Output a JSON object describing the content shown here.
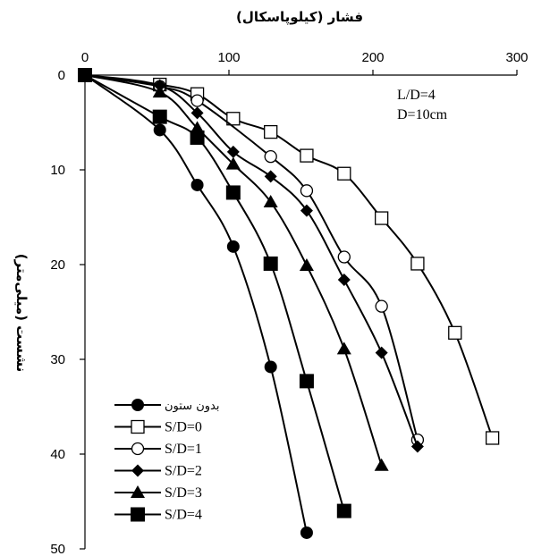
{
  "chart_data": {
    "type": "line",
    "title": "",
    "xlabel": "فشار (کیلوپاسکال)",
    "ylabel": "نشست (میلی‌متر)",
    "xlim": [
      0,
      300
    ],
    "ylim": [
      0,
      50
    ],
    "y_inverted": true,
    "x_axis_position": "top",
    "x_ticks": [
      "0",
      "100",
      "200",
      "300"
    ],
    "y_ticks": [
      "0",
      "10",
      "20",
      "30",
      "40",
      "50"
    ],
    "grid": false,
    "legend_position": "bottom-left",
    "annotations": [
      "L/D=4",
      "D=10cm"
    ],
    "series": [
      {
        "name": "بدون ستون",
        "marker": "circle-filled",
        "x": [
          0,
          52,
          78,
          103,
          129,
          154
        ],
        "y": [
          0,
          5.8,
          11.6,
          18.1,
          30.8,
          48.3
        ]
      },
      {
        "name": "S/D=0",
        "marker": "square-open",
        "x": [
          0,
          52,
          78,
          103,
          129,
          154,
          180,
          206,
          231,
          257,
          283
        ],
        "y": [
          0,
          1.0,
          2.0,
          4.6,
          6.0,
          8.5,
          10.4,
          15.1,
          19.9,
          27.2,
          38.3
        ]
      },
      {
        "name": "S/D=1",
        "marker": "circle-open",
        "x": [
          0,
          52,
          78,
          129,
          154,
          180,
          206,
          231
        ],
        "y": [
          0,
          1.2,
          2.7,
          8.6,
          12.2,
          19.2,
          24.4,
          38.5
        ]
      },
      {
        "name": "S/D=2",
        "marker": "diamond-filled",
        "x": [
          0,
          52,
          78,
          103,
          129,
          154,
          180,
          206,
          231
        ],
        "y": [
          0,
          1.1,
          4.0,
          8.1,
          10.7,
          14.3,
          21.6,
          29.3,
          39.2
        ]
      },
      {
        "name": "S/D=3",
        "marker": "triangle-filled",
        "x": [
          0,
          52,
          78,
          103,
          129,
          154,
          180,
          206
        ],
        "y": [
          0,
          1.8,
          5.6,
          9.4,
          13.4,
          20.1,
          28.9,
          41.2
        ]
      },
      {
        "name": "S/D=4",
        "marker": "square-filled",
        "x": [
          0,
          52,
          78,
          103,
          129,
          154,
          180
        ],
        "y": [
          0,
          4.4,
          6.6,
          12.4,
          19.9,
          32.3,
          46.0
        ]
      }
    ]
  }
}
